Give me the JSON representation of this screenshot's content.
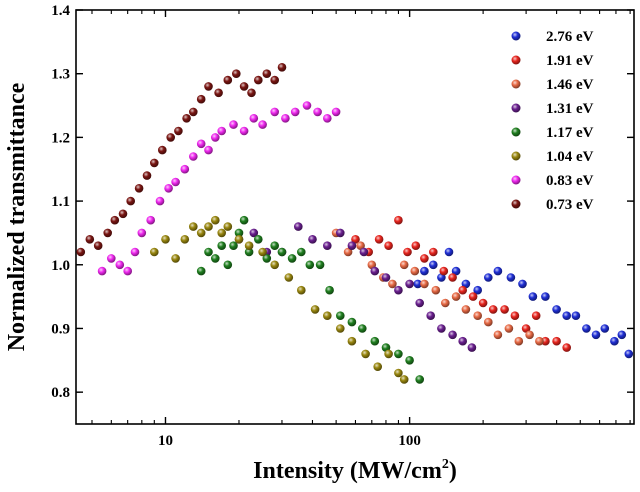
{
  "chart_data": {
    "type": "scatter",
    "xlabel": "Intensity (MW/cm",
    "xlabel_sup": "2",
    "xlabel_end": ")",
    "ylabel": "Normalized transmittance",
    "xscale": "log",
    "xlim": [
      4.3,
      830
    ],
    "ylim": [
      0.75,
      1.4
    ],
    "x_ticks": [
      {
        "value": 10,
        "label": "10"
      },
      {
        "value": 100,
        "label": "100"
      }
    ],
    "y_ticks": [
      {
        "value": 0.8,
        "label": "0.8"
      },
      {
        "value": 0.9,
        "label": "0.9"
      },
      {
        "value": 1.0,
        "label": "1.0"
      },
      {
        "value": 1.1,
        "label": "1.1"
      },
      {
        "value": 1.2,
        "label": "1.2"
      },
      {
        "value": 1.3,
        "label": "1.3"
      },
      {
        "value": 1.4,
        "label": "1.4"
      }
    ],
    "legend_position": "top-right",
    "grid": false,
    "series": [
      {
        "name": "2.76 eV",
        "color": "#1f2fd6",
        "points": [
          [
            108,
            0.97
          ],
          [
            115,
            0.99
          ],
          [
            125,
            1.0
          ],
          [
            135,
            0.98
          ],
          [
            145,
            1.02
          ],
          [
            155,
            0.99
          ],
          [
            170,
            0.97
          ],
          [
            190,
            0.96
          ],
          [
            210,
            0.98
          ],
          [
            230,
            0.99
          ],
          [
            260,
            0.98
          ],
          [
            290,
            0.97
          ],
          [
            320,
            0.95
          ],
          [
            360,
            0.95
          ],
          [
            400,
            0.93
          ],
          [
            440,
            0.92
          ],
          [
            480,
            0.92
          ],
          [
            530,
            0.9
          ],
          [
            580,
            0.89
          ],
          [
            630,
            0.9
          ],
          [
            690,
            0.88
          ],
          [
            740,
            0.89
          ],
          [
            790,
            0.86
          ]
        ]
      },
      {
        "name": "1.91 eV",
        "color": "#e8251e",
        "points": [
          [
            60,
            1.04
          ],
          [
            68,
            1.02
          ],
          [
            75,
            1.04
          ],
          [
            82,
            1.03
          ],
          [
            90,
            1.07
          ],
          [
            98,
            1.02
          ],
          [
            106,
            1.03
          ],
          [
            115,
            1.01
          ],
          [
            125,
            1.02
          ],
          [
            138,
            0.99
          ],
          [
            150,
            0.98
          ],
          [
            165,
            0.96
          ],
          [
            182,
            0.95
          ],
          [
            200,
            0.94
          ],
          [
            220,
            0.93
          ],
          [
            245,
            0.93
          ],
          [
            270,
            0.92
          ],
          [
            300,
            0.9
          ],
          [
            330,
            0.92
          ],
          [
            360,
            0.88
          ],
          [
            400,
            0.88
          ],
          [
            440,
            0.87
          ]
        ]
      },
      {
        "name": "1.46 eV",
        "color": "#e86a45",
        "points": [
          [
            50,
            1.05
          ],
          [
            56,
            1.02
          ],
          [
            63,
            1.03
          ],
          [
            70,
            1.0
          ],
          [
            78,
            0.98
          ],
          [
            85,
            0.97
          ],
          [
            95,
            1.0
          ],
          [
            105,
            0.99
          ],
          [
            115,
            0.97
          ],
          [
            128,
            0.96
          ],
          [
            140,
            0.94
          ],
          [
            155,
            0.95
          ],
          [
            170,
            0.93
          ],
          [
            190,
            0.92
          ],
          [
            210,
            0.91
          ],
          [
            230,
            0.89
          ],
          [
            255,
            0.9
          ],
          [
            280,
            0.88
          ],
          [
            310,
            0.89
          ],
          [
            340,
            0.88
          ]
        ]
      },
      {
        "name": "1.31 eV",
        "color": "#6a1f8f",
        "points": [
          [
            20,
            1.04
          ],
          [
            23,
            1.05
          ],
          [
            26,
            1.02
          ],
          [
            30,
            1.02
          ],
          [
            35,
            1.06
          ],
          [
            40,
            1.04
          ],
          [
            46,
            1.03
          ],
          [
            52,
            1.05
          ],
          [
            58,
            1.03
          ],
          [
            65,
            1.02
          ],
          [
            72,
            0.99
          ],
          [
            80,
            0.98
          ],
          [
            90,
            0.96
          ],
          [
            100,
            0.97
          ],
          [
            110,
            0.94
          ],
          [
            122,
            0.92
          ],
          [
            135,
            0.9
          ],
          [
            150,
            0.89
          ],
          [
            165,
            0.88
          ],
          [
            180,
            0.87
          ]
        ]
      },
      {
        "name": "1.17 eV",
        "color": "#1f7f1f",
        "points": [
          [
            14,
            0.99
          ],
          [
            15,
            1.02
          ],
          [
            16,
            1.01
          ],
          [
            17,
            1.03
          ],
          [
            18,
            1.0
          ],
          [
            19,
            1.03
          ],
          [
            20,
            1.05
          ],
          [
            21,
            1.07
          ],
          [
            22,
            1.02
          ],
          [
            24,
            1.04
          ],
          [
            26,
            1.01
          ],
          [
            28,
            1.03
          ],
          [
            30,
            1.02
          ],
          [
            33,
            1.01
          ],
          [
            36,
            1.02
          ],
          [
            39,
            1.0
          ],
          [
            43,
            1.0
          ],
          [
            47,
            0.96
          ],
          [
            52,
            0.92
          ],
          [
            58,
            0.91
          ],
          [
            64,
            0.9
          ],
          [
            72,
            0.88
          ],
          [
            80,
            0.87
          ],
          [
            90,
            0.86
          ],
          [
            100,
            0.85
          ],
          [
            110,
            0.82
          ]
        ]
      },
      {
        "name": "1.04 eV",
        "color": "#99870f",
        "points": [
          [
            9,
            1.02
          ],
          [
            10,
            1.04
          ],
          [
            11,
            1.01
          ],
          [
            12,
            1.04
          ],
          [
            13,
            1.06
          ],
          [
            14,
            1.05
          ],
          [
            15,
            1.06
          ],
          [
            16,
            1.07
          ],
          [
            17,
            1.05
          ],
          [
            18,
            1.06
          ],
          [
            20,
            1.04
          ],
          [
            22,
            1.03
          ],
          [
            25,
            1.02
          ],
          [
            28,
            1.0
          ],
          [
            32,
            0.98
          ],
          [
            36,
            0.96
          ],
          [
            41,
            0.93
          ],
          [
            46,
            0.92
          ],
          [
            52,
            0.9
          ],
          [
            58,
            0.88
          ],
          [
            66,
            0.86
          ],
          [
            74,
            0.84
          ],
          [
            82,
            0.86
          ],
          [
            90,
            0.83
          ],
          [
            95,
            0.82
          ]
        ]
      },
      {
        "name": "0.83 eV",
        "color": "#ef28ef",
        "points": [
          [
            5.5,
            0.99
          ],
          [
            6,
            1.01
          ],
          [
            6.5,
            1.0
          ],
          [
            7,
            0.99
          ],
          [
            7.5,
            1.02
          ],
          [
            8,
            1.05
          ],
          [
            8.7,
            1.07
          ],
          [
            9.5,
            1.1
          ],
          [
            10.3,
            1.12
          ],
          [
            11,
            1.13
          ],
          [
            12,
            1.15
          ],
          [
            13,
            1.17
          ],
          [
            14,
            1.19
          ],
          [
            15,
            1.18
          ],
          [
            16,
            1.2
          ],
          [
            17,
            1.21
          ],
          [
            19,
            1.22
          ],
          [
            21,
            1.21
          ],
          [
            23,
            1.23
          ],
          [
            25,
            1.22
          ],
          [
            28,
            1.24
          ],
          [
            31,
            1.23
          ],
          [
            34,
            1.24
          ],
          [
            38,
            1.25
          ],
          [
            42,
            1.24
          ],
          [
            46,
            1.23
          ],
          [
            50,
            1.24
          ]
        ]
      },
      {
        "name": "0.73 eV",
        "color": "#7a1512",
        "points": [
          [
            4.5,
            1.02
          ],
          [
            4.9,
            1.04
          ],
          [
            5.3,
            1.03
          ],
          [
            5.8,
            1.05
          ],
          [
            6.2,
            1.07
          ],
          [
            6.7,
            1.08
          ],
          [
            7.2,
            1.1
          ],
          [
            7.8,
            1.12
          ],
          [
            8.4,
            1.14
          ],
          [
            9,
            1.16
          ],
          [
            9.7,
            1.18
          ],
          [
            10.5,
            1.2
          ],
          [
            11.3,
            1.21
          ],
          [
            12.2,
            1.23
          ],
          [
            13,
            1.24
          ],
          [
            14,
            1.26
          ],
          [
            15,
            1.28
          ],
          [
            16.5,
            1.27
          ],
          [
            18,
            1.29
          ],
          [
            19.5,
            1.3
          ],
          [
            21,
            1.28
          ],
          [
            22.5,
            1.27
          ],
          [
            24,
            1.29
          ],
          [
            26,
            1.3
          ],
          [
            28,
            1.29
          ],
          [
            30,
            1.31
          ]
        ]
      }
    ]
  }
}
